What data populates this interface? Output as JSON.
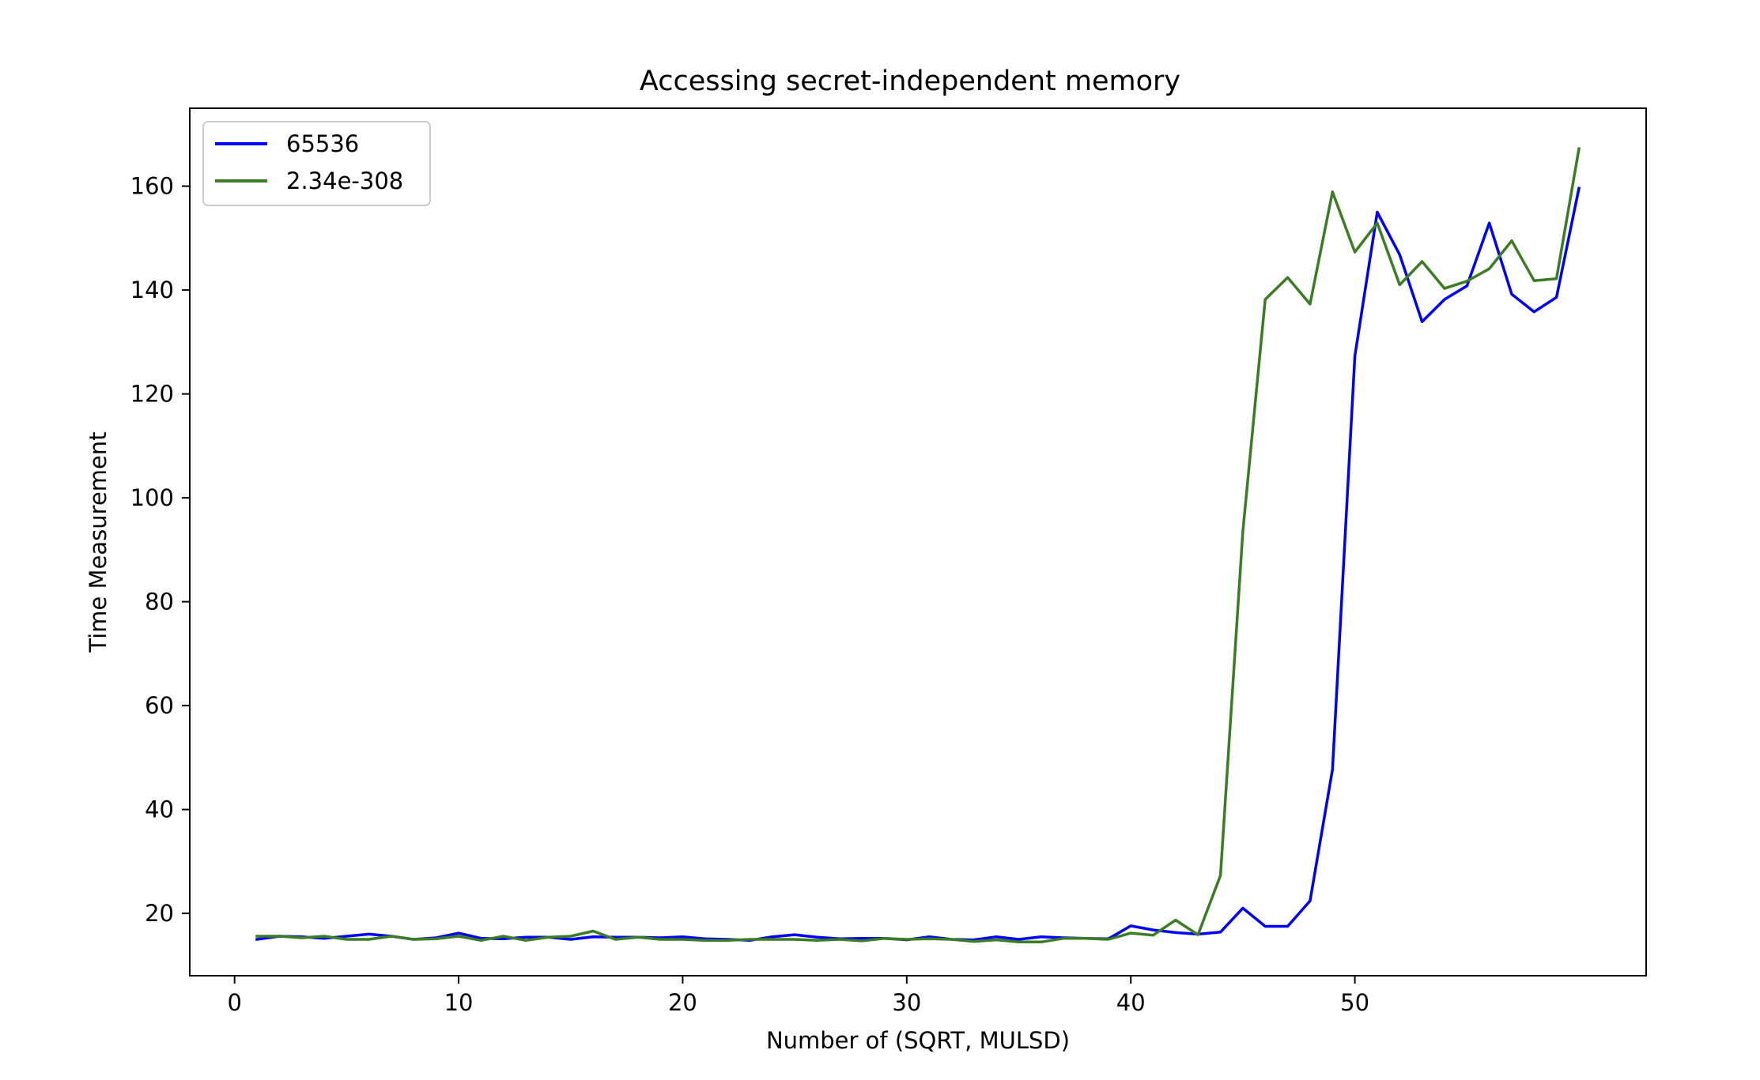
{
  "chart_data": {
    "type": "line",
    "title": "Accessing secret-independent memory",
    "xlabel": "Number of (SQRT, MULSD)",
    "ylabel": "Time Measurement",
    "xlim": [
      -2,
      63
    ],
    "ylim": [
      8,
      175
    ],
    "xticks": [
      0,
      10,
      20,
      30,
      40,
      50
    ],
    "yticks": [
      20,
      40,
      60,
      80,
      100,
      120,
      140,
      160
    ],
    "legend_position": "upper-left",
    "grid": false,
    "x": [
      1,
      2,
      3,
      4,
      5,
      6,
      7,
      8,
      9,
      10,
      11,
      12,
      13,
      14,
      15,
      16,
      17,
      18,
      19,
      20,
      21,
      22,
      23,
      24,
      25,
      26,
      27,
      28,
      29,
      30,
      31,
      32,
      33,
      34,
      35,
      36,
      37,
      38,
      39,
      40,
      41,
      42,
      43,
      44,
      45,
      46,
      47,
      48,
      49,
      50,
      51,
      52,
      53,
      54,
      55,
      56,
      57,
      58,
      59,
      60
    ],
    "series": [
      {
        "name": "65536",
        "color": "#0000ff",
        "values": [
          15.0,
          15.6,
          15.5,
          15.2,
          15.6,
          16.0,
          15.6,
          15.0,
          15.3,
          16.2,
          15.2,
          15.1,
          15.4,
          15.4,
          15.0,
          15.5,
          15.4,
          15.4,
          15.3,
          15.5,
          15.1,
          15.0,
          14.8,
          15.5,
          15.9,
          15.4,
          15.1,
          15.2,
          15.2,
          14.9,
          15.5,
          15.0,
          14.9,
          15.5,
          15.0,
          15.5,
          15.3,
          15.2,
          15.1,
          17.6,
          16.8,
          16.3,
          16.0,
          16.4,
          21.0,
          17.5,
          17.5,
          22.4,
          47.7,
          127.3,
          155.0,
          146.8,
          133.9,
          138.2,
          140.8,
          152.9,
          139.2,
          135.8,
          138.6,
          159.6
        ]
      },
      {
        "name": "2.34e-308",
        "color": "#3a7d22",
        "values": [
          15.6,
          15.6,
          15.3,
          15.6,
          15.0,
          15.0,
          15.6,
          15.0,
          15.1,
          15.6,
          14.8,
          15.6,
          14.8,
          15.4,
          15.6,
          16.6,
          15.0,
          15.4,
          15.0,
          15.0,
          14.8,
          14.8,
          15.0,
          15.0,
          15.0,
          14.8,
          15.0,
          14.7,
          15.2,
          15.0,
          15.1,
          15.0,
          14.6,
          14.9,
          14.5,
          14.5,
          15.2,
          15.2,
          15.0,
          16.2,
          15.8,
          18.7,
          15.9,
          27.3,
          93.5,
          138.2,
          142.4,
          137.3,
          158.9,
          147.3,
          152.9,
          141.0,
          145.5,
          140.3,
          141.7,
          144.1,
          149.5,
          141.8,
          142.2,
          167.2
        ]
      }
    ]
  }
}
